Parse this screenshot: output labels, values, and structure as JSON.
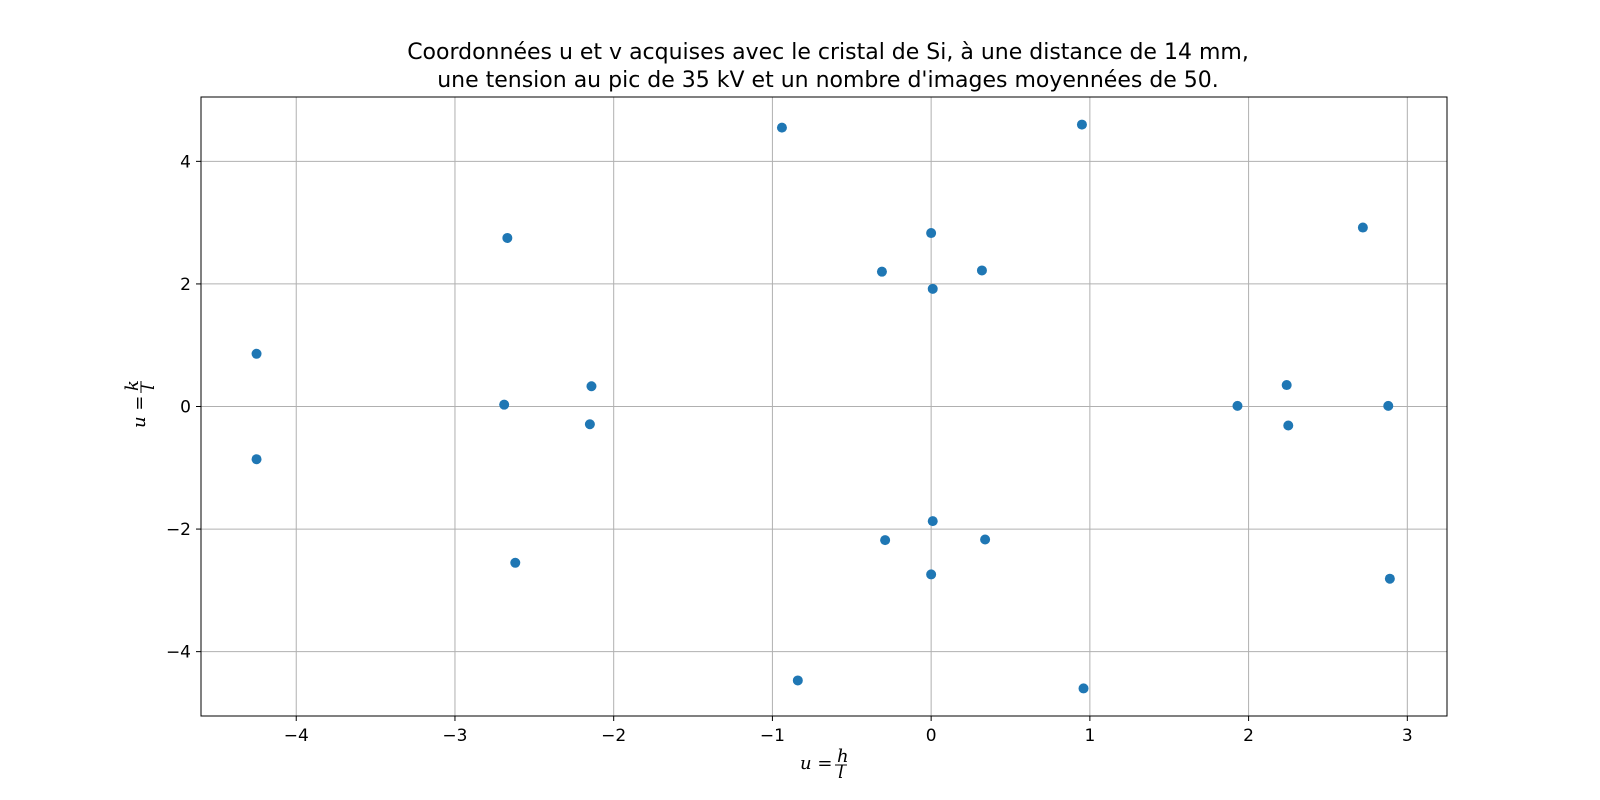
{
  "chart_data": {
    "type": "scatter",
    "title_lines": [
      "Coordonnées u et v acquises avec le cristal de Si, à une distance de 14 mm,",
      "une tension au pic de 35 kV et un nombre d'images moyennées de 50."
    ],
    "xlabel": "u = h/l",
    "ylabel": "u = k/l",
    "xlim": [
      -4.6,
      3.25
    ],
    "ylim": [
      -5.05,
      5.05
    ],
    "xticks": [
      -4,
      -3,
      -2,
      -1,
      0,
      1,
      2,
      3
    ],
    "yticks": [
      -4,
      -2,
      0,
      2,
      4
    ],
    "xtick_labels": [
      "−4",
      "−3",
      "−2",
      "−1",
      "0",
      "1",
      "2",
      "3"
    ],
    "ytick_labels": [
      "−4",
      "−2",
      "0",
      "2",
      "4"
    ],
    "grid": true,
    "marker_color": "#1f77b4",
    "points": [
      {
        "x": -4.25,
        "y": 0.86
      },
      {
        "x": -4.25,
        "y": -0.86
      },
      {
        "x": -2.67,
        "y": 2.75
      },
      {
        "x": -2.69,
        "y": 0.03
      },
      {
        "x": -2.62,
        "y": -2.55
      },
      {
        "x": -2.14,
        "y": 0.33
      },
      {
        "x": -2.15,
        "y": -0.29
      },
      {
        "x": -0.94,
        "y": 4.55
      },
      {
        "x": -0.84,
        "y": -4.47
      },
      {
        "x": -0.31,
        "y": 2.2
      },
      {
        "x": -0.29,
        "y": -2.18
      },
      {
        "x": 0.0,
        "y": 2.83
      },
      {
        "x": 0.01,
        "y": 1.92
      },
      {
        "x": 0.01,
        "y": -1.87
      },
      {
        "x": 0.0,
        "y": -2.74
      },
      {
        "x": 0.32,
        "y": 2.22
      },
      {
        "x": 0.34,
        "y": -2.17
      },
      {
        "x": 0.95,
        "y": 4.6
      },
      {
        "x": 0.96,
        "y": -4.6
      },
      {
        "x": 1.93,
        "y": 0.01
      },
      {
        "x": 2.24,
        "y": 0.35
      },
      {
        "x": 2.25,
        "y": -0.31
      },
      {
        "x": 2.72,
        "y": 2.92
      },
      {
        "x": 2.88,
        "y": 0.01
      },
      {
        "x": 2.89,
        "y": -2.81
      }
    ]
  }
}
